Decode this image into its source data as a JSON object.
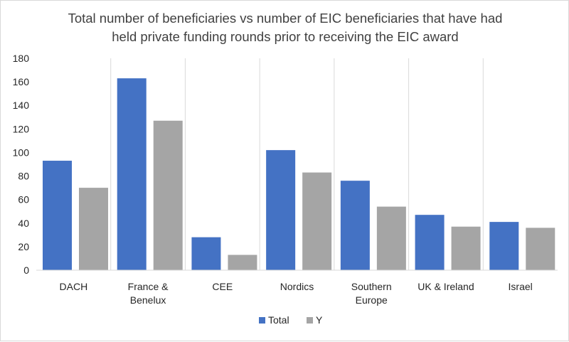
{
  "chart_data": {
    "type": "bar",
    "title": [
      "Total number of beneficiaries vs number of EIC beneficiaries that have had",
      "held private funding rounds prior to receiving the EIC award"
    ],
    "categories": [
      [
        "DACH"
      ],
      [
        "France &",
        "Benelux"
      ],
      [
        "CEE"
      ],
      [
        "Nordics"
      ],
      [
        "Southern",
        "Europe"
      ],
      [
        "UK & Ireland"
      ],
      [
        "Israel"
      ]
    ],
    "series": [
      {
        "name": "Total",
        "color": "#4472c4",
        "values": [
          93,
          163,
          28,
          102,
          76,
          47,
          41
        ]
      },
      {
        "name": "Y",
        "color": "#a5a5a5",
        "values": [
          70,
          127,
          13,
          83,
          54,
          37,
          36
        ]
      }
    ],
    "ylim": [
      0,
      180
    ],
    "yticks": [
      "0",
      "20",
      "40",
      "60",
      "80",
      "100",
      "120",
      "140",
      "160",
      "180"
    ],
    "xlabel": "",
    "ylabel": "",
    "grid": "vertical category separators",
    "legend_position": "bottom"
  }
}
